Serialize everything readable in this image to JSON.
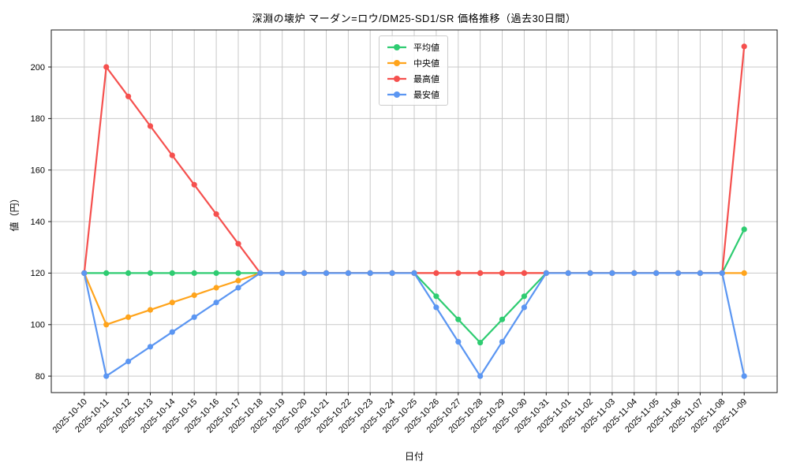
{
  "chart_data": {
    "type": "line",
    "title": "深淵の壊炉 マーダン=ロウ/DM25-SD1/SR 価格推移（過去30日間）",
    "xlabel": "日付",
    "ylabel": "値（円）",
    "grid": true,
    "grid_color": "#c9c9c9",
    "spine_color": "#1a1a1a",
    "legend_position": "upper center",
    "xlim": [
      -1.5,
      31.5
    ],
    "ylim": [
      73.6,
      214.4
    ],
    "y_ticks": [
      80,
      100,
      120,
      140,
      160,
      180,
      200
    ],
    "x_tick_labels": [
      "2025-10-10",
      "2025-10-11",
      "2025-10-12",
      "2025-10-13",
      "2025-10-14",
      "2025-10-15",
      "2025-10-16",
      "2025-10-17",
      "2025-10-18",
      "2025-10-19",
      "2025-10-20",
      "2025-10-21",
      "2025-10-22",
      "2025-10-23",
      "2025-10-24",
      "2025-10-25",
      "2025-10-26",
      "2025-10-27",
      "2025-10-28",
      "2025-10-29",
      "2025-10-30",
      "2025-10-31",
      "2025-11-01",
      "2025-11-02",
      "2025-11-03",
      "2025-11-04",
      "2025-11-05",
      "2025-11-06",
      "2025-11-07",
      "2025-11-08",
      "2025-11-09"
    ],
    "series": [
      {
        "key": "mean",
        "name": "平均値",
        "color": "#2ecc71",
        "values": [
          120,
          120,
          120,
          120,
          120,
          120,
          120,
          120,
          120,
          120,
          120,
          120,
          120,
          120,
          120,
          120,
          111,
          102,
          93,
          102,
          111,
          120,
          120,
          120,
          120,
          120,
          120,
          120,
          120,
          120,
          137
        ]
      },
      {
        "key": "median",
        "name": "中央値",
        "color": "#ffa41c",
        "values": [
          120,
          100,
          102.9,
          105.7,
          108.6,
          111.4,
          114.3,
          117.1,
          120,
          120,
          120,
          120,
          120,
          120,
          120,
          120,
          120,
          120,
          120,
          120,
          120,
          120,
          120,
          120,
          120,
          120,
          120,
          120,
          120,
          120,
          120
        ]
      },
      {
        "key": "max",
        "name": "最高値",
        "color": "#f5504e",
        "values": [
          120,
          200,
          188.6,
          177.1,
          165.7,
          154.3,
          142.9,
          131.4,
          120,
          120,
          120,
          120,
          120,
          120,
          120,
          120,
          120,
          120,
          120,
          120,
          120,
          120,
          120,
          120,
          120,
          120,
          120,
          120,
          120,
          120,
          208
        ]
      },
      {
        "key": "min",
        "name": "最安値",
        "color": "#5b96f2",
        "values": [
          120,
          80,
          85.7,
          91.4,
          97.1,
          102.9,
          108.6,
          114.3,
          120,
          120,
          120,
          120,
          120,
          120,
          120,
          120,
          106.7,
          93.3,
          80,
          93.3,
          106.7,
          120,
          120,
          120,
          120,
          120,
          120,
          120,
          120,
          120,
          80
        ]
      }
    ]
  }
}
